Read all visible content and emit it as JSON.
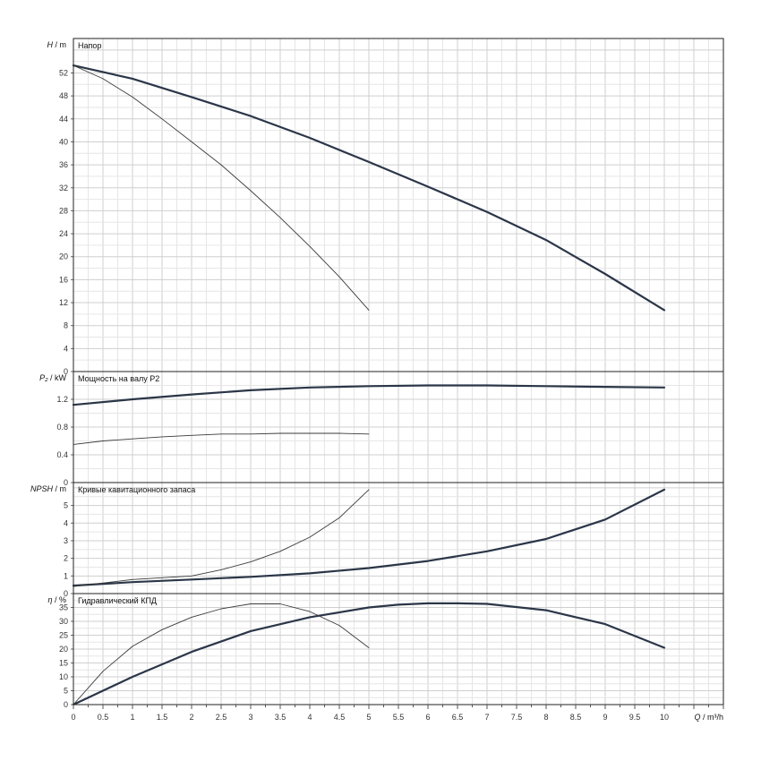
{
  "chart_data": {
    "type": "line",
    "x_axis": {
      "label_sym": "Q",
      "label_unit": "m³/h",
      "range": [
        0,
        11
      ],
      "ticks": [
        "0",
        "0.5",
        "1",
        "1.5",
        "2",
        "2.5",
        "3",
        "3.5",
        "4",
        "4.5",
        "5",
        "5.5",
        "6",
        "6.5",
        "7",
        "7.5",
        "8",
        "8.5",
        "9",
        "9.5",
        "10"
      ]
    },
    "panels": [
      {
        "id": "head",
        "title": "Напор",
        "ylabel_sym": "H",
        "ylabel_unit": "m",
        "ylim": [
          0,
          58
        ],
        "yticks": [
          "0",
          "4",
          "8",
          "12",
          "16",
          "20",
          "24",
          "28",
          "32",
          "36",
          "40",
          "44",
          "48",
          "52"
        ],
        "series": [
          {
            "style": "thick",
            "x": [
              0,
              1,
              2,
              3,
              4,
              5,
              6,
              7,
              8,
              9,
              10
            ],
            "y": [
              53.3,
              51.0,
              47.8,
              44.5,
              40.7,
              36.5,
              32.2,
              27.8,
              22.9,
              17.0,
              10.7
            ]
          },
          {
            "style": "thin",
            "x": [
              0,
              0.5,
              1,
              1.5,
              2,
              2.5,
              3,
              3.5,
              4,
              4.5,
              5
            ],
            "y": [
              53.3,
              51.0,
              47.8,
              44.0,
              40.0,
              36.0,
              31.5,
              26.8,
              21.8,
              16.5,
              10.7
            ]
          }
        ]
      },
      {
        "id": "power",
        "title": "Мощность на валу P2",
        "ylabel_sym": "P₂",
        "ylabel_unit": "kW",
        "ylim": [
          0,
          1.6
        ],
        "yticks": [
          "0",
          "0.4",
          "0.8",
          "1.2"
        ],
        "series": [
          {
            "style": "thick",
            "x": [
              0,
              1,
              2,
              3,
              4,
              5,
              6,
              7,
              8,
              9,
              10
            ],
            "y": [
              1.12,
              1.2,
              1.27,
              1.33,
              1.37,
              1.39,
              1.4,
              1.4,
              1.39,
              1.38,
              1.37
            ]
          },
          {
            "style": "thin",
            "x": [
              0,
              0.5,
              1,
              1.5,
              2,
              2.5,
              3,
              3.5,
              4,
              4.5,
              5
            ],
            "y": [
              0.55,
              0.6,
              0.63,
              0.66,
              0.68,
              0.7,
              0.7,
              0.71,
              0.71,
              0.71,
              0.7
            ]
          }
        ]
      },
      {
        "id": "npsh",
        "title": "Кривые кавитационного запаса",
        "ylabel_sym": "NPSH",
        "ylabel_unit": "m",
        "ylim": [
          0,
          6.3
        ],
        "yticks": [
          "0",
          "1",
          "2",
          "3",
          "4",
          "5"
        ],
        "series": [
          {
            "style": "thick",
            "x": [
              0,
              1,
              2,
              3,
              4,
              5,
              6,
              7,
              8,
              9,
              10
            ],
            "y": [
              0.45,
              0.65,
              0.8,
              0.95,
              1.15,
              1.45,
              1.85,
              2.4,
              3.1,
              4.2,
              5.9
            ]
          },
          {
            "style": "thin",
            "x": [
              0,
              0.5,
              1,
              1.5,
              2,
              2.5,
              3,
              3.5,
              4,
              4.5,
              5
            ],
            "y": [
              0.4,
              0.6,
              0.8,
              0.9,
              1.0,
              1.35,
              1.8,
              2.4,
              3.2,
              4.3,
              5.9
            ]
          }
        ]
      },
      {
        "id": "eff",
        "title": "Гидравлический КПД",
        "ylabel_sym": "η",
        "ylabel_unit": "%",
        "ylim": [
          0,
          40
        ],
        "yticks": [
          "0",
          "5",
          "10",
          "15",
          "20",
          "25",
          "30",
          "35"
        ],
        "series": [
          {
            "style": "thick",
            "x": [
              0,
              1,
              2,
              3,
              4,
              5,
              5.5,
              6,
              6.5,
              7,
              8,
              9,
              10
            ],
            "y": [
              0,
              10,
              19,
              26.5,
              31.5,
              35,
              36,
              36.5,
              36.5,
              36.3,
              34,
              29,
              20.5
            ]
          },
          {
            "style": "thin",
            "x": [
              0,
              0.5,
              1,
              1.5,
              2,
              2.5,
              3,
              3.5,
              4,
              4.5,
              5
            ],
            "y": [
              0,
              12,
              21,
              27,
              31.5,
              34.5,
              36.3,
              36.3,
              33.5,
              28.5,
              20.5
            ]
          }
        ]
      }
    ]
  }
}
